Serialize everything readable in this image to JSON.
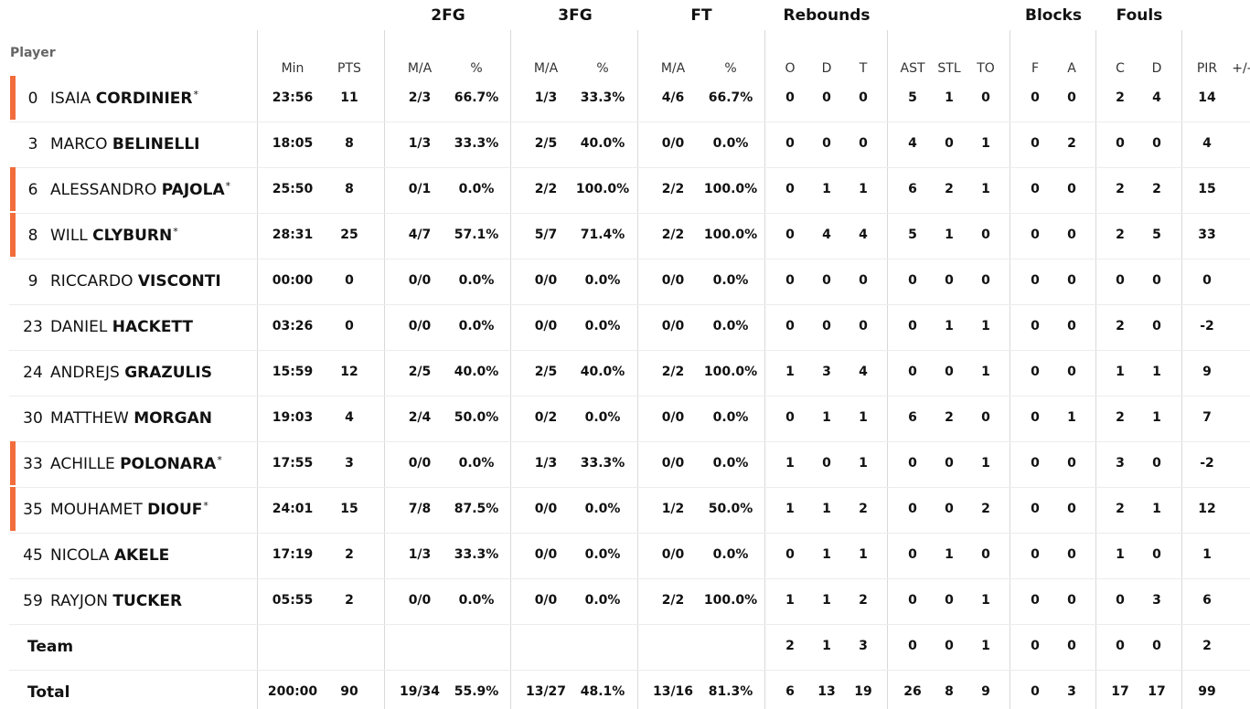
{
  "groups": [
    {
      "label": "2FG",
      "key": "fg2"
    },
    {
      "label": "3FG",
      "key": "fg3"
    },
    {
      "label": "FT",
      "key": "ft"
    },
    {
      "label": "Rebounds",
      "key": "reb"
    },
    {
      "label": "Blocks",
      "key": "blk"
    },
    {
      "label": "Fouls",
      "key": "fouls"
    }
  ],
  "header": {
    "player": "Player",
    "columns": [
      "Min",
      "PTS",
      "M/A",
      "%",
      "M/A",
      "%",
      "M/A",
      "%",
      "O",
      "D",
      "T",
      "AST",
      "STL",
      "TO",
      "F",
      "A",
      "C",
      "D",
      "PIR",
      "+/-"
    ]
  },
  "players": [
    {
      "number": "0",
      "first": "ISAIA",
      "last": "CORDINIER",
      "starter": true,
      "stats": [
        "23:56",
        "11",
        "2/3",
        "66.7%",
        "1/3",
        "33.3%",
        "4/6",
        "66.7%",
        "0",
        "0",
        "0",
        "5",
        "1",
        "0",
        "0",
        "0",
        "2",
        "4",
        "14",
        ""
      ]
    },
    {
      "number": "3",
      "first": "MARCO",
      "last": "BELINELLI",
      "starter": false,
      "stats": [
        "18:05",
        "8",
        "1/3",
        "33.3%",
        "2/5",
        "40.0%",
        "0/0",
        "0.0%",
        "0",
        "0",
        "0",
        "4",
        "0",
        "1",
        "0",
        "2",
        "0",
        "0",
        "4",
        ""
      ]
    },
    {
      "number": "6",
      "first": "ALESSANDRO",
      "last": "PAJOLA",
      "starter": true,
      "stats": [
        "25:50",
        "8",
        "0/1",
        "0.0%",
        "2/2",
        "100.0%",
        "2/2",
        "100.0%",
        "0",
        "1",
        "1",
        "6",
        "2",
        "1",
        "0",
        "0",
        "2",
        "2",
        "15",
        ""
      ]
    },
    {
      "number": "8",
      "first": "WILL",
      "last": "CLYBURN",
      "starter": true,
      "stats": [
        "28:31",
        "25",
        "4/7",
        "57.1%",
        "5/7",
        "71.4%",
        "2/2",
        "100.0%",
        "0",
        "4",
        "4",
        "5",
        "1",
        "0",
        "0",
        "0",
        "2",
        "5",
        "33",
        ""
      ]
    },
    {
      "number": "9",
      "first": "RICCARDO",
      "last": "VISCONTI",
      "starter": false,
      "stats": [
        "00:00",
        "0",
        "0/0",
        "0.0%",
        "0/0",
        "0.0%",
        "0/0",
        "0.0%",
        "0",
        "0",
        "0",
        "0",
        "0",
        "0",
        "0",
        "0",
        "0",
        "0",
        "0",
        ""
      ]
    },
    {
      "number": "23",
      "first": "DANIEL",
      "last": "HACKETT",
      "starter": false,
      "stats": [
        "03:26",
        "0",
        "0/0",
        "0.0%",
        "0/0",
        "0.0%",
        "0/0",
        "0.0%",
        "0",
        "0",
        "0",
        "0",
        "1",
        "1",
        "0",
        "0",
        "2",
        "0",
        "-2",
        ""
      ]
    },
    {
      "number": "24",
      "first": "ANDREJS",
      "last": "GRAZULIS",
      "starter": false,
      "stats": [
        "15:59",
        "12",
        "2/5",
        "40.0%",
        "2/5",
        "40.0%",
        "2/2",
        "100.0%",
        "1",
        "3",
        "4",
        "0",
        "0",
        "1",
        "0",
        "0",
        "1",
        "1",
        "9",
        ""
      ]
    },
    {
      "number": "30",
      "first": "MATTHEW",
      "last": "MORGAN",
      "starter": false,
      "stats": [
        "19:03",
        "4",
        "2/4",
        "50.0%",
        "0/2",
        "0.0%",
        "0/0",
        "0.0%",
        "0",
        "1",
        "1",
        "6",
        "2",
        "0",
        "0",
        "1",
        "2",
        "1",
        "7",
        ""
      ]
    },
    {
      "number": "33",
      "first": "ACHILLE",
      "last": "POLONARA",
      "starter": true,
      "stats": [
        "17:55",
        "3",
        "0/0",
        "0.0%",
        "1/3",
        "33.3%",
        "0/0",
        "0.0%",
        "1",
        "0",
        "1",
        "0",
        "0",
        "1",
        "0",
        "0",
        "3",
        "0",
        "-2",
        ""
      ]
    },
    {
      "number": "35",
      "first": "MOUHAMET",
      "last": "DIOUF",
      "starter": true,
      "stats": [
        "24:01",
        "15",
        "7/8",
        "87.5%",
        "0/0",
        "0.0%",
        "1/2",
        "50.0%",
        "1",
        "1",
        "2",
        "0",
        "0",
        "2",
        "0",
        "0",
        "2",
        "1",
        "12",
        ""
      ]
    },
    {
      "number": "45",
      "first": "NICOLA",
      "last": "AKELE",
      "starter": false,
      "stats": [
        "17:19",
        "2",
        "1/3",
        "33.3%",
        "0/0",
        "0.0%",
        "0/0",
        "0.0%",
        "0",
        "1",
        "1",
        "0",
        "1",
        "0",
        "0",
        "0",
        "1",
        "0",
        "1",
        ""
      ]
    },
    {
      "number": "59",
      "first": "RAYJON",
      "last": "TUCKER",
      "starter": false,
      "stats": [
        "05:55",
        "2",
        "0/0",
        "0.0%",
        "0/0",
        "0.0%",
        "2/2",
        "100.0%",
        "1",
        "1",
        "2",
        "0",
        "0",
        "1",
        "0",
        "0",
        "0",
        "3",
        "6",
        ""
      ]
    }
  ],
  "summary": [
    {
      "label": "Team",
      "stats": [
        "",
        "",
        "",
        "",
        "",
        "",
        "",
        "",
        "2",
        "1",
        "3",
        "0",
        "0",
        "1",
        "0",
        "0",
        "0",
        "0",
        "2",
        ""
      ]
    },
    {
      "label": "Total",
      "stats": [
        "200:00",
        "90",
        "19/34",
        "55.9%",
        "13/27",
        "48.1%",
        "13/16",
        "81.3%",
        "6",
        "13",
        "19",
        "26",
        "8",
        "9",
        "0",
        "3",
        "17",
        "17",
        "99",
        ""
      ]
    }
  ],
  "colors": {
    "accent": "#f26d3d",
    "divider": "#d9d9d9"
  }
}
